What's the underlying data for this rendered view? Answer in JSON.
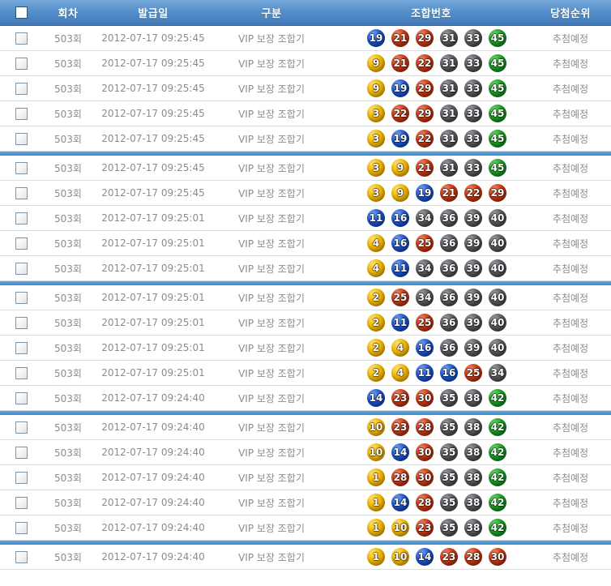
{
  "header": {
    "columns": [
      "회차",
      "발급일",
      "구분",
      "조합번호",
      "당첨순위"
    ]
  },
  "group_size": 5,
  "colors": {
    "header_bg": "#5590CA",
    "separator": "#4A97D9",
    "row_border": "#dcdcdc",
    "cell_text": "#8c8c8c",
    "ball_1_10_yellow": "#F4BB08",
    "ball_11_20_blue": "#2259D0",
    "ball_21_30_red": "#CA3B15",
    "ball_31_40_gray": "#5D5D63",
    "ball_41_45_green": "#1CA326"
  },
  "icons": {
    "select_all_checkbox": "checkbox-unchecked",
    "row_checkbox": "checkbox-unchecked"
  },
  "rows": [
    {
      "round": "503회",
      "date": "2012-07-17 09:25:45",
      "type": "VIP 보장 조합기",
      "numbers": [
        19,
        21,
        29,
        31,
        33,
        45
      ],
      "rank": "추첨예정"
    },
    {
      "round": "503회",
      "date": "2012-07-17 09:25:45",
      "type": "VIP 보장 조합기",
      "numbers": [
        9,
        21,
        22,
        31,
        33,
        45
      ],
      "rank": "추첨예정"
    },
    {
      "round": "503회",
      "date": "2012-07-17 09:25:45",
      "type": "VIP 보장 조합기",
      "numbers": [
        9,
        19,
        29,
        31,
        33,
        45
      ],
      "rank": "추첨예정"
    },
    {
      "round": "503회",
      "date": "2012-07-17 09:25:45",
      "type": "VIP 보장 조합기",
      "numbers": [
        3,
        22,
        29,
        31,
        33,
        45
      ],
      "rank": "추첨예정"
    },
    {
      "round": "503회",
      "date": "2012-07-17 09:25:45",
      "type": "VIP 보장 조합기",
      "numbers": [
        3,
        19,
        22,
        31,
        33,
        45
      ],
      "rank": "추첨예정"
    },
    {
      "round": "503회",
      "date": "2012-07-17 09:25:45",
      "type": "VIP 보장 조합기",
      "numbers": [
        3,
        9,
        21,
        31,
        33,
        45
      ],
      "rank": "추첨예정"
    },
    {
      "round": "503회",
      "date": "2012-07-17 09:25:45",
      "type": "VIP 보장 조합기",
      "numbers": [
        3,
        9,
        19,
        21,
        22,
        29
      ],
      "rank": "추첨예정"
    },
    {
      "round": "503회",
      "date": "2012-07-17 09:25:01",
      "type": "VIP 보장 조합기",
      "numbers": [
        11,
        16,
        34,
        36,
        39,
        40
      ],
      "rank": "추첨예정"
    },
    {
      "round": "503회",
      "date": "2012-07-17 09:25:01",
      "type": "VIP 보장 조합기",
      "numbers": [
        4,
        16,
        25,
        36,
        39,
        40
      ],
      "rank": "추첨예정"
    },
    {
      "round": "503회",
      "date": "2012-07-17 09:25:01",
      "type": "VIP 보장 조합기",
      "numbers": [
        4,
        11,
        34,
        36,
        39,
        40
      ],
      "rank": "추첨예정"
    },
    {
      "round": "503회",
      "date": "2012-07-17 09:25:01",
      "type": "VIP 보장 조합기",
      "numbers": [
        2,
        25,
        34,
        36,
        39,
        40
      ],
      "rank": "추첨예정"
    },
    {
      "round": "503회",
      "date": "2012-07-17 09:25:01",
      "type": "VIP 보장 조합기",
      "numbers": [
        2,
        11,
        25,
        36,
        39,
        40
      ],
      "rank": "추첨예정"
    },
    {
      "round": "503회",
      "date": "2012-07-17 09:25:01",
      "type": "VIP 보장 조합기",
      "numbers": [
        2,
        4,
        16,
        36,
        39,
        40
      ],
      "rank": "추첨예정"
    },
    {
      "round": "503회",
      "date": "2012-07-17 09:25:01",
      "type": "VIP 보장 조합기",
      "numbers": [
        2,
        4,
        11,
        16,
        25,
        34
      ],
      "rank": "추첨예정"
    },
    {
      "round": "503회",
      "date": "2012-07-17 09:24:40",
      "type": "VIP 보장 조합기",
      "numbers": [
        14,
        23,
        30,
        35,
        38,
        42
      ],
      "rank": "추첨예정"
    },
    {
      "round": "503회",
      "date": "2012-07-17 09:24:40",
      "type": "VIP 보장 조합기",
      "numbers": [
        10,
        23,
        28,
        35,
        38,
        42
      ],
      "rank": "추첨예정"
    },
    {
      "round": "503회",
      "date": "2012-07-17 09:24:40",
      "type": "VIP 보장 조합기",
      "numbers": [
        10,
        14,
        30,
        35,
        38,
        42
      ],
      "rank": "추첨예정"
    },
    {
      "round": "503회",
      "date": "2012-07-17 09:24:40",
      "type": "VIP 보장 조합기",
      "numbers": [
        1,
        28,
        30,
        35,
        38,
        42
      ],
      "rank": "추첨예정"
    },
    {
      "round": "503회",
      "date": "2012-07-17 09:24:40",
      "type": "VIP 보장 조합기",
      "numbers": [
        1,
        14,
        28,
        35,
        38,
        42
      ],
      "rank": "추첨예정"
    },
    {
      "round": "503회",
      "date": "2012-07-17 09:24:40",
      "type": "VIP 보장 조합기",
      "numbers": [
        1,
        10,
        23,
        35,
        38,
        42
      ],
      "rank": "추첨예정"
    },
    {
      "round": "503회",
      "date": "2012-07-17 09:24:40",
      "type": "VIP 보장 조합기",
      "numbers": [
        1,
        10,
        14,
        23,
        28,
        30
      ],
      "rank": "추첨예정"
    }
  ]
}
